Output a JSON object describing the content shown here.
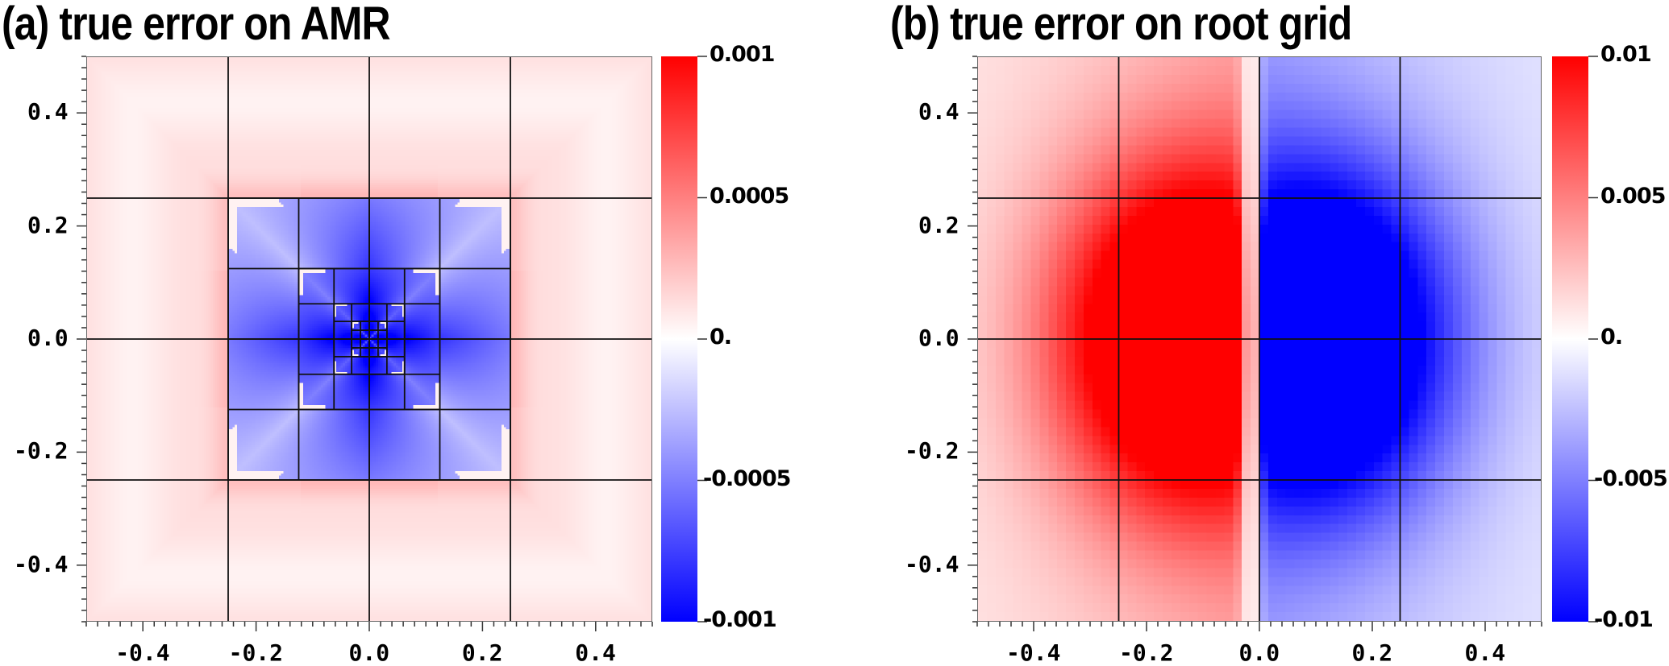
{
  "panels": [
    {
      "id": "a",
      "title": "(a) true error on AMR",
      "colorbar": {
        "min": -0.001,
        "max": 0.001,
        "tick_labels": [
          "0.001",
          "0.0005",
          "0.",
          "-0.0005",
          "-0.001"
        ],
        "tick_values": [
          0.001,
          0.0005,
          0,
          -0.0005,
          -0.001
        ],
        "colors": {
          "positive": "#ff0000",
          "zero": "#ffffff",
          "negative": "#0000ff"
        }
      },
      "x_tick_labels": [
        "-0.4",
        "-0.2",
        "0.0",
        "0.2",
        "0.4"
      ],
      "y_tick_labels": [
        "0.4",
        "0.2",
        "0.0",
        "-0.2",
        "-0.4"
      ]
    },
    {
      "id": "b",
      "title": "(b) true error on root grid",
      "colorbar": {
        "min": -0.01,
        "max": 0.01,
        "tick_labels": [
          "0.01",
          "0.005",
          "0.",
          "-0.005",
          "-0.01"
        ],
        "tick_values": [
          0.01,
          0.005,
          0,
          -0.005,
          -0.01
        ],
        "colors": {
          "positive": "#ff0000",
          "zero": "#ffffff",
          "negative": "#0000ff"
        }
      },
      "x_tick_labels": [
        "-0.4",
        "-0.2",
        "0.0",
        "0.2",
        "0.4"
      ],
      "y_tick_labels": [
        "0.4",
        "0.2",
        "0.0",
        "-0.2",
        "-0.4"
      ]
    }
  ],
  "chart_data": [
    {
      "type": "heatmap",
      "title": "(a) true error on AMR",
      "xlabel": "",
      "ylabel": "",
      "xlim": [
        -0.5,
        0.5
      ],
      "ylim": [
        -0.5,
        0.5
      ],
      "x_ticks": [
        -0.4,
        -0.2,
        0.0,
        0.2,
        0.4
      ],
      "y_ticks": [
        -0.4,
        -0.2,
        0.0,
        0.2,
        0.4
      ],
      "colorbar": {
        "range": [
          -0.001,
          0.001
        ],
        "ticks": [
          -0.001,
          -0.0005,
          0,
          0.0005,
          0.001
        ],
        "colormap": "blue-white-red"
      },
      "grid_overlay": "AMR block boundaries (4x4 root blocks, nested refinement toward center: levels at ±0.25, ±0.125, ±0.0625, ±0.03125)",
      "description": "Outer region light pink (~+0.0001 to +0.0002), refined central square [-0.25,0.25] blue (down to ~-0.001 near center), stronger red bands at refinement boundaries"
    },
    {
      "type": "heatmap",
      "title": "(b) true error on root grid",
      "xlabel": "",
      "ylabel": "",
      "xlim": [
        -0.5,
        0.5
      ],
      "ylim": [
        -0.5,
        0.5
      ],
      "x_ticks": [
        -0.4,
        -0.2,
        0.0,
        0.2,
        0.4
      ],
      "y_ticks": [
        -0.4,
        -0.2,
        0.0,
        0.2,
        0.4
      ],
      "colorbar": {
        "range": [
          -0.01,
          0.01
        ],
        "ticks": [
          -0.01,
          -0.005,
          0,
          0.005,
          0.01
        ],
        "colormap": "blue-white-red"
      },
      "grid_overlay": "4x4 root block boundaries at ±0.25 and 0",
      "description": "Dipole: positive (red, saturated >=0.01) lobe left of x=0 centered near x≈-0.12, negative (blue, saturated <=-0.01) lobe right of x=0 centered near x≈+0.1; decays to ~±0.003 at edges"
    }
  ]
}
